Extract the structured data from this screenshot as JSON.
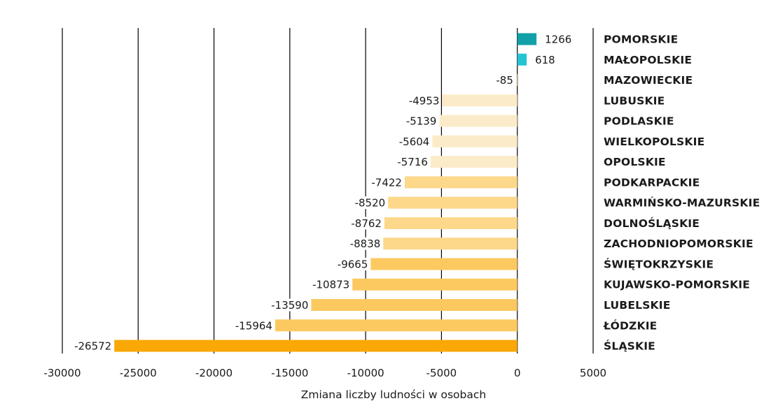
{
  "chart_data": {
    "type": "bar",
    "orientation": "horizontal",
    "xlabel": "Zmiana liczby ludności w osobach",
    "xlim": [
      -30000,
      5000
    ],
    "x_ticks": [
      "-30000",
      "-25000",
      "-20000",
      "-15000",
      "-10000",
      "-5000",
      "0",
      "5000"
    ],
    "x_tick_values": [
      -30000,
      -25000,
      -20000,
      -15000,
      -10000,
      -5000,
      0,
      5000
    ],
    "grid": "vertical",
    "categories": [
      "POMORSKIE",
      "MAŁOPOLSKIE",
      "MAZOWIECKIE",
      "LUBUSKIE",
      "PODLASKIE",
      "WIELKOPOLSKIE",
      "OPOLSKIE",
      "PODKARPACKIE",
      "WARMIŃSKO-MAZURSKIE",
      "DOLNOŚLĄSKIE",
      "ZACHODNIOPOMORSKIE",
      "ŚWIĘTOKRZYSKIE",
      "KUJAWSKO-POMORSKIE",
      "LUBELSKIE",
      "ŁÓDZKIE",
      "ŚLĄSKIE"
    ],
    "values": [
      1266,
      618,
      -85,
      -4953,
      -5139,
      -5604,
      -5716,
      -7422,
      -8520,
      -8762,
      -8838,
      -9665,
      -10873,
      -13590,
      -15964,
      -26572
    ],
    "value_labels": [
      "1266",
      "618",
      "-85",
      "-4953",
      "-5139",
      "-5604",
      "-5716",
      "-7422",
      "-8520",
      "-8762",
      "-8838",
      "-9665",
      "-10873",
      "-13590",
      "-15964",
      "-26572"
    ],
    "colors": {
      "positive_strong": "#12a0a8",
      "positive_light": "#25c4d4",
      "neg_level_1": "#fcebc8",
      "neg_level_2": "#fdd88a",
      "neg_level_3": "#fcc961",
      "neg_level_4": "#f9a806",
      "gridline": "#000000",
      "text": "#1a1a1a"
    },
    "bar_color_keys": [
      "positive_strong",
      "positive_light",
      "neg_level_1",
      "neg_level_1",
      "neg_level_1",
      "neg_level_1",
      "neg_level_1",
      "neg_level_2",
      "neg_level_2",
      "neg_level_2",
      "neg_level_2",
      "neg_level_3",
      "neg_level_3",
      "neg_level_3",
      "neg_level_3",
      "neg_level_4"
    ]
  }
}
